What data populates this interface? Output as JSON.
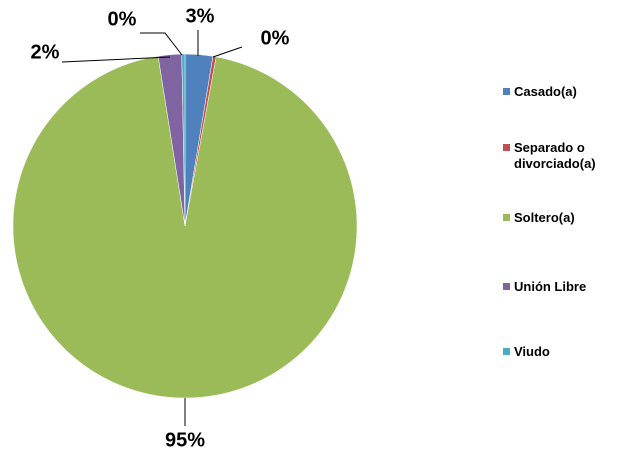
{
  "chart_data": {
    "type": "pie",
    "categories": [
      "Casado(a)",
      "Separado o divorciado(a)",
      "Soltero(a)",
      "Unión Libre",
      "Viudo"
    ],
    "values": [
      2.6,
      0.3,
      94.6,
      2.2,
      0.3
    ],
    "value_labels": [
      "3%",
      "0%",
      "95%",
      "2%",
      "0%"
    ],
    "colors": [
      "#4f81bd",
      "#c0504d",
      "#9bbb59",
      "#8064a2",
      "#4bacc6"
    ],
    "legend": "right"
  }
}
